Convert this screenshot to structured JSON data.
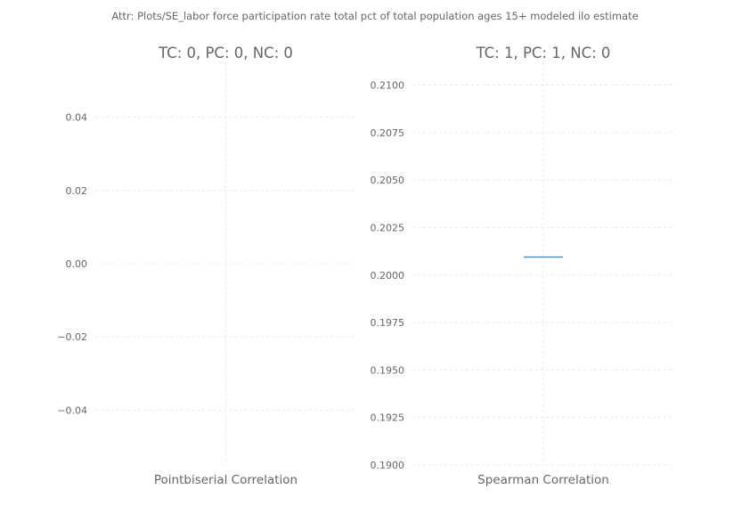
{
  "suptitle": "Attr: Plots/SE_labor force participation rate total pct of total population ages 15+ modeled ilo estimate",
  "colors": {
    "text": "#666666",
    "grid": "#e6e6e6",
    "series": "#4c8cb0"
  },
  "chart_data": [
    {
      "type": "box",
      "title": "TC: 0, PC: 0, NC: 0",
      "category": "Pointbiserial Correlation",
      "ylim": [
        -0.055,
        0.055
      ],
      "yticks": [
        -0.04,
        -0.02,
        0.0,
        0.02,
        0.04
      ],
      "ytick_labels": [
        "−0.04",
        "−0.02",
        "0.00",
        "0.02",
        "0.04"
      ],
      "values": [],
      "grid": true
    },
    {
      "type": "box",
      "title": "TC: 1, PC: 1, NC: 0",
      "category": "Spearman Correlation",
      "ylim": [
        0.19,
        0.2112
      ],
      "yticks": [
        0.19,
        0.1925,
        0.195,
        0.1975,
        0.2,
        0.2025,
        0.205,
        0.2075,
        0.21
      ],
      "ytick_labels": [
        "0.1900",
        "0.1925",
        "0.1950",
        "0.1975",
        "0.2000",
        "0.2025",
        "0.2050",
        "0.2075",
        "0.2100"
      ],
      "values": [
        0.20095
      ],
      "grid": true
    }
  ]
}
